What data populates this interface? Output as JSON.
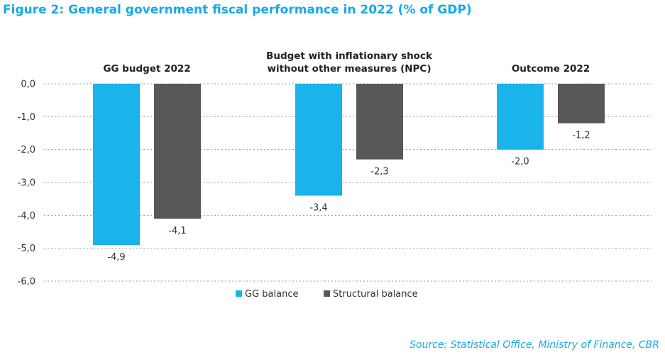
{
  "title": "Figure 2: General government fiscal performance in 2022 (% of GDP)",
  "source": "Source: Statistical Office, Ministry of Finance, CBR",
  "chart_data": {
    "type": "bar",
    "categories": [
      [
        "GG budget 2022"
      ],
      [
        "Budget with inflationary shock",
        "without other measures (NPC)"
      ],
      [
        "Outcome 2022"
      ]
    ],
    "series": [
      {
        "name": "GG balance",
        "color": "#1ab3ea",
        "values": [
          -4.9,
          -3.4,
          -2.0
        ],
        "labels": [
          "-4,9",
          "-3,4",
          "-2,0"
        ]
      },
      {
        "name": "Structural balance",
        "color": "#58585a",
        "values": [
          -4.1,
          -2.3,
          -1.2
        ],
        "labels": [
          "-4,1",
          "-2,3",
          "-1,2"
        ]
      }
    ],
    "yticks": [
      0,
      -1,
      -2,
      -3,
      -4,
      -5,
      -6
    ],
    "ytick_labels": [
      "0,0",
      "-1,0",
      "-2,0",
      "-3,0",
      "-4,0",
      "-5,0",
      "-6,0"
    ],
    "ylim": [
      -6,
      0
    ],
    "grid": true,
    "legend_position": "bottom-center"
  }
}
